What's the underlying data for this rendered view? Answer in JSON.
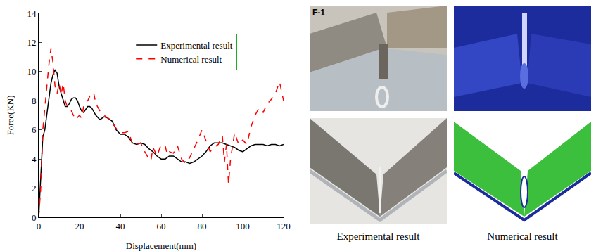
{
  "chart_data": {
    "type": "line",
    "x_label": "Displacement(mm)",
    "y_label": "Force(KN)",
    "xlim": [
      0,
      120
    ],
    "xticks": [
      0,
      20,
      40,
      60,
      80,
      100,
      120
    ],
    "ylim": [
      0,
      14
    ],
    "yticks": [
      0,
      2,
      4,
      6,
      8,
      10,
      12,
      14
    ],
    "grid": false,
    "legend": "upper center",
    "series": [
      {
        "name": "Experimental result",
        "color": "#000000",
        "line_style": "solid",
        "x": [
          0,
          1,
          2,
          3,
          4,
          5,
          6,
          7,
          8,
          9,
          10,
          11,
          12,
          13,
          14,
          15,
          16,
          17,
          18,
          19,
          20,
          21,
          22,
          23,
          24,
          25,
          26,
          28,
          30,
          32,
          34,
          36,
          38,
          40,
          42,
          44,
          46,
          48,
          50,
          52,
          54,
          56,
          58,
          60,
          62,
          64,
          66,
          68,
          70,
          72,
          74,
          76,
          78,
          80,
          82,
          84,
          86,
          88,
          90,
          92,
          94,
          96,
          98,
          100,
          102,
          104,
          106,
          108,
          110,
          112,
          114,
          116,
          118,
          120
        ],
        "values": [
          0,
          3,
          5.5,
          6,
          7,
          8,
          9.2,
          9.8,
          10.1,
          9.9,
          9,
          8.5,
          8,
          7.6,
          7.6,
          7.8,
          8.1,
          8.2,
          8.2,
          8,
          7.6,
          7.3,
          7.2,
          7.4,
          7.6,
          7.6,
          7.5,
          7,
          6.7,
          6.9,
          6.8,
          6.6,
          6,
          5.7,
          5.7,
          5.5,
          5.1,
          5,
          5.1,
          5,
          4.7,
          4.5,
          4.2,
          4,
          4,
          4.2,
          4.2,
          4,
          3.8,
          3.8,
          3.7,
          3.8,
          4,
          4.2,
          4.5,
          4.9,
          5.1,
          5.1,
          5.1,
          5,
          4.9,
          4.8,
          4.6,
          4.5,
          4.7,
          4.9,
          5,
          5,
          5,
          4.9,
          5,
          5,
          4.9,
          5
        ]
      },
      {
        "name": "Numerical result",
        "color": "#ff0000",
        "line_style": "dashed",
        "x": [
          0,
          1,
          2,
          3,
          4,
          5,
          6,
          7,
          8,
          9,
          10,
          11,
          12,
          13,
          14,
          16,
          18,
          20,
          21,
          22,
          24,
          26,
          27,
          28,
          30,
          32,
          34,
          36,
          38,
          40,
          42,
          44,
          46,
          48,
          50,
          52,
          54,
          55,
          56,
          58,
          60,
          62,
          63,
          64,
          66,
          68,
          70,
          72,
          74,
          76,
          78,
          80,
          82,
          84,
          86,
          88,
          90,
          91,
          92,
          93,
          94,
          96,
          98,
          100,
          102,
          104,
          106,
          108,
          110,
          112,
          114,
          116,
          118,
          119,
          120
        ],
        "values": [
          0,
          2,
          6,
          7.5,
          9,
          10.5,
          11.6,
          10.6,
          9,
          8.5,
          9.2,
          8.4,
          9.2,
          8,
          7.6,
          7.3,
          6.7,
          7,
          6.8,
          7.6,
          8,
          8.6,
          8.5,
          7.8,
          7.3,
          7,
          6.8,
          6.5,
          6.1,
          5.8,
          5.8,
          5.9,
          5,
          5,
          5.1,
          4.5,
          4,
          3.9,
          4.8,
          4.2,
          5,
          4.9,
          4.3,
          4.5,
          4.4,
          4.9,
          4,
          3.7,
          4.1,
          4.7,
          5.3,
          6,
          5.2,
          4.5,
          4.8,
          5,
          5.6,
          3.8,
          5,
          2.3,
          4,
          5.8,
          5,
          5.3,
          5,
          6.2,
          7,
          7.5,
          7.2,
          7.8,
          8.1,
          8.5,
          9.3,
          8.7,
          8
        ]
      }
    ]
  },
  "images": {
    "label": "F-1",
    "captions": [
      "Experimental result",
      "Numerical result"
    ]
  }
}
